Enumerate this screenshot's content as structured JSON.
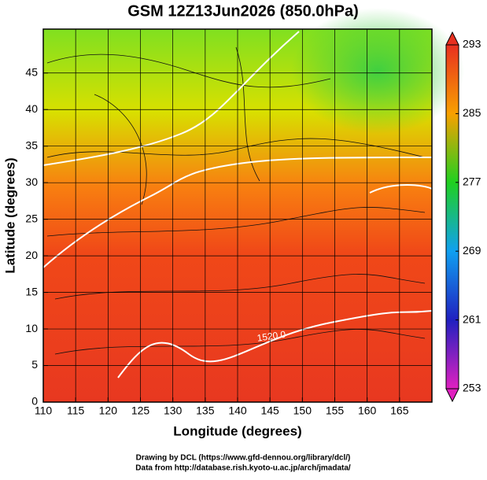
{
  "chart_data": {
    "type": "map",
    "title": "GSM 12Z13Jun2026 (850.0hPa)",
    "xlabel": "Longitude (degrees)",
    "ylabel": "Latitude  (degrees)",
    "xlim": [
      110,
      170
    ],
    "xticks": [
      110,
      115,
      120,
      125,
      130,
      135,
      140,
      145,
      150,
      155,
      160,
      165
    ],
    "ylim": [
      0,
      51
    ],
    "yticks": [
      0,
      5,
      10,
      15,
      20,
      25,
      30,
      35,
      40,
      45
    ],
    "grid": true,
    "colorbar": {
      "lim": [
        253,
        293
      ],
      "ticks": [
        253,
        261,
        269,
        277,
        285,
        293
      ],
      "colors": [
        "#e020c0",
        "#2020c0",
        "#10a0f0",
        "#20d020",
        "#f8a000",
        "#e83020"
      ]
    },
    "annotations": [
      "1520.0"
    ],
    "footer": [
      "Drawing by DCL (https://www.gfd-dennou.org/library/dcl/)",
      "Data from http://database.rish.kyoto-u.ac.jp/arch/jmadata/"
    ]
  }
}
